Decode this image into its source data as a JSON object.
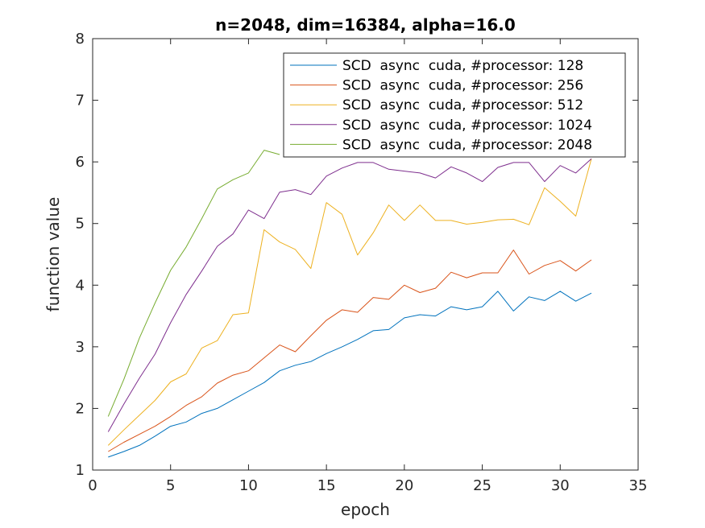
{
  "chart_data": {
    "type": "line",
    "title": "n=2048, dim=16384, alpha=16.0",
    "xlabel": "epoch",
    "ylabel": "function value",
    "xlim": [
      0,
      35
    ],
    "ylim": [
      1,
      8
    ],
    "xticks": [
      0,
      5,
      10,
      15,
      20,
      25,
      30,
      35
    ],
    "yticks": [
      1,
      2,
      3,
      4,
      5,
      6,
      7,
      8
    ],
    "grid": false,
    "legend_position": "top-right",
    "x": [
      1,
      2,
      3,
      4,
      5,
      6,
      7,
      8,
      9,
      10,
      11,
      12,
      13,
      14,
      15,
      16,
      17,
      18,
      19,
      20,
      21,
      22,
      23,
      24,
      25,
      26,
      27,
      28,
      29,
      30,
      31,
      32
    ],
    "series": [
      {
        "name": "SCD  async  cuda, #processor: 128",
        "color": "#0072BD",
        "values": [
          1.21,
          1.3,
          1.4,
          1.55,
          1.71,
          1.78,
          1.92,
          2.0,
          2.14,
          2.28,
          2.42,
          2.61,
          2.7,
          2.76,
          2.89,
          3.0,
          3.12,
          3.26,
          3.28,
          3.47,
          3.52,
          3.5,
          3.65,
          3.6,
          3.65,
          3.9,
          3.58,
          3.81,
          3.75,
          3.9,
          3.74,
          3.87
        ]
      },
      {
        "name": "SCD  async  cuda, #processor: 256",
        "color": "#D95319",
        "values": [
          1.3,
          1.45,
          1.58,
          1.71,
          1.87,
          2.05,
          2.19,
          2.41,
          2.54,
          2.61,
          2.82,
          3.03,
          2.92,
          3.18,
          3.43,
          3.6,
          3.56,
          3.8,
          3.77,
          4.0,
          3.88,
          3.95,
          4.21,
          4.12,
          4.2,
          4.2,
          4.57,
          4.18,
          4.32,
          4.4,
          4.23,
          4.41
        ]
      },
      {
        "name": "SCD  async  cuda, #processor: 512",
        "color": "#EDB120",
        "values": [
          1.4,
          1.65,
          1.89,
          2.13,
          2.43,
          2.56,
          2.98,
          3.1,
          3.52,
          3.55,
          4.9,
          4.7,
          4.58,
          4.27,
          5.34,
          5.15,
          4.49,
          4.85,
          5.3,
          5.05,
          5.3,
          5.05,
          5.05,
          4.99,
          5.02,
          5.06,
          5.07,
          4.98,
          5.58,
          5.36,
          5.12,
          6.05
        ]
      },
      {
        "name": "SCD  async  cuda, #processor: 1024",
        "color": "#7E2F8E",
        "values": [
          1.62,
          2.07,
          2.49,
          2.88,
          3.39,
          3.85,
          4.23,
          4.63,
          4.83,
          5.22,
          5.08,
          5.51,
          5.55,
          5.47,
          5.77,
          5.9,
          5.99,
          5.99,
          5.88,
          5.85,
          5.82,
          5.74,
          5.92,
          5.82,
          5.68,
          5.91,
          5.99,
          5.99,
          5.68,
          5.94,
          5.82,
          6.05
        ]
      },
      {
        "name": "SCD  async  cuda, #processor: 2048",
        "color": "#77AC30",
        "values": [
          1.87,
          2.47,
          3.14,
          3.71,
          4.24,
          4.62,
          5.08,
          5.56,
          5.71,
          5.82,
          6.19,
          6.12,
          null,
          null,
          null,
          null,
          null,
          null,
          null,
          null,
          null,
          null,
          null,
          null,
          null,
          null,
          null,
          null,
          null,
          null,
          null,
          null
        ]
      }
    ]
  }
}
